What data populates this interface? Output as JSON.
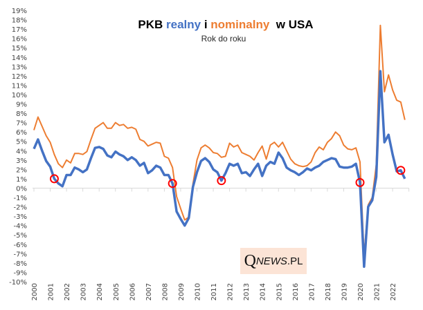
{
  "chart_data": {
    "type": "line",
    "title_parts": [
      {
        "text": "PKB ",
        "color": "#000000"
      },
      {
        "text": "realny",
        "color": "#4472c4"
      },
      {
        "text": " i ",
        "color": "#000000"
      },
      {
        "text": "nominalny",
        "color": "#ed7d31"
      },
      {
        "text": "  w USA",
        "color": "#000000"
      }
    ],
    "subtitle": "Rok do roku",
    "ylim": [
      -10,
      19
    ],
    "yticks": [
      19,
      18,
      17,
      16,
      15,
      14,
      13,
      12,
      11,
      10,
      9,
      8,
      7,
      6,
      5,
      4,
      3,
      2,
      1,
      0,
      -1,
      -2,
      -3,
      -4,
      -5,
      -6,
      -7,
      -8,
      -9,
      -10
    ],
    "ytick_labels": [
      "19%",
      "18%",
      "17%",
      "16%",
      "15%",
      "14%",
      "13%",
      "12%",
      "11%",
      "10%",
      "9%",
      "8%",
      "7%",
      "6%",
      "5%",
      "4%",
      "3%",
      "2%",
      "1%",
      "0%",
      "-1%",
      "-2%",
      "-3%",
      "-4%",
      "-5%",
      "-6%",
      "-7%",
      "-8%",
      "-9%",
      "-10%"
    ],
    "xtick_labels": [
      "2000",
      "2001",
      "2002",
      "2003",
      "2004",
      "2005",
      "2006",
      "2007",
      "2008",
      "2009",
      "2010",
      "2011",
      "2012",
      "2013",
      "2014",
      "2015",
      "2016",
      "2017",
      "2018",
      "2019",
      "2020",
      "2021",
      "2022"
    ],
    "x_start": "2000Q1",
    "frequency": "quarterly",
    "series": [
      {
        "name": "PKB realny",
        "color": "#4472c4",
        "values": [
          4.2,
          5.2,
          4.0,
          2.9,
          2.3,
          1.0,
          0.5,
          0.2,
          1.4,
          1.4,
          2.2,
          2.0,
          1.7,
          2.0,
          3.2,
          4.3,
          4.4,
          4.2,
          3.5,
          3.3,
          3.9,
          3.6,
          3.4,
          3.0,
          3.3,
          3.0,
          2.4,
          2.7,
          1.6,
          1.9,
          2.4,
          2.2,
          1.4,
          1.4,
          0.5,
          -2.5,
          -3.3,
          -4.0,
          -3.2,
          0.1,
          1.7,
          2.9,
          3.2,
          2.8,
          2.0,
          1.7,
          0.8,
          1.6,
          2.6,
          2.4,
          2.6,
          1.6,
          1.7,
          1.3,
          2.0,
          2.6,
          1.3,
          2.4,
          2.8,
          2.6,
          3.8,
          3.2,
          2.2,
          1.9,
          1.7,
          1.4,
          1.7,
          2.1,
          1.9,
          2.2,
          2.4,
          2.8,
          3.0,
          3.2,
          3.1,
          2.3,
          2.2,
          2.2,
          2.3,
          2.6,
          0.6,
          -8.4,
          -2.0,
          -1.3,
          1.2,
          12.5,
          4.9,
          5.7,
          3.6,
          1.8,
          1.9,
          1.0
        ],
        "markers": [
          5,
          34,
          46,
          80,
          90
        ]
      },
      {
        "name": "PKB nominalny",
        "color": "#ed7d31",
        "values": [
          6.2,
          7.6,
          6.6,
          5.6,
          4.9,
          3.6,
          2.6,
          2.2,
          3.0,
          2.7,
          3.7,
          3.7,
          3.6,
          3.9,
          5.2,
          6.4,
          6.7,
          7.0,
          6.4,
          6.4,
          7.0,
          6.7,
          6.8,
          6.4,
          6.5,
          6.3,
          5.2,
          5.0,
          4.5,
          4.7,
          4.9,
          4.8,
          3.4,
          3.2,
          2.2,
          -0.9,
          -2.2,
          -3.4,
          -3.1,
          0.4,
          3.0,
          4.3,
          4.6,
          4.3,
          3.8,
          3.7,
          3.3,
          3.4,
          4.8,
          4.4,
          4.6,
          3.8,
          3.6,
          3.4,
          3.0,
          3.8,
          4.5,
          3.1,
          4.6,
          4.9,
          4.4,
          4.9,
          4.0,
          3.1,
          2.6,
          2.4,
          2.3,
          2.4,
          2.8,
          3.8,
          4.4,
          4.1,
          4.9,
          5.3,
          6.0,
          5.6,
          4.6,
          4.2,
          4.1,
          4.3,
          2.8,
          -7.2,
          -1.8,
          -1.0,
          2.5,
          17.4,
          10.3,
          12.1,
          10.5,
          9.4,
          9.2,
          7.3
        ]
      }
    ],
    "annotations": [
      {
        "type": "circle",
        "series": "PKB realny",
        "label": "~1%",
        "color": "#ff0000"
      }
    ]
  },
  "logo": {
    "q": "Q",
    "news": "NEWS",
    "pl": ".PL"
  }
}
